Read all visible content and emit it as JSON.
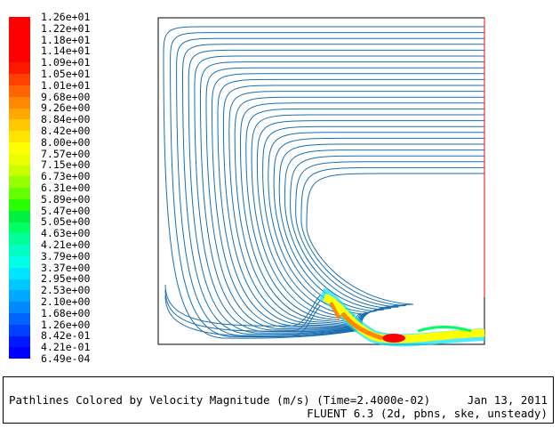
{
  "legend": {
    "colors": [
      "#0000ff",
      "#0018ff",
      "#0040ff",
      "#0064ff",
      "#0088ff",
      "#00a8ff",
      "#00c8ff",
      "#00e4ff",
      "#00ffe8",
      "#00ffc4",
      "#00ff98",
      "#00ff64",
      "#00f040",
      "#28ff00",
      "#64ff00",
      "#98ff00",
      "#c8ff00",
      "#ecff00",
      "#ffff00",
      "#ffe400",
      "#ffc800",
      "#ffa800",
      "#ff8800",
      "#ff6400",
      "#ff4000",
      "#ff1800",
      "#ff0000",
      "#ff0000",
      "#ff0000",
      "#ff0000"
    ],
    "ticks": [
      "1.26e+01",
      "1.22e+01",
      "1.18e+01",
      "1.14e+01",
      "1.09e+01",
      "1.05e+01",
      "1.01e+01",
      "9.68e+00",
      "9.26e+00",
      "8.84e+00",
      "8.42e+00",
      "8.00e+00",
      "7.57e+00",
      "7.15e+00",
      "6.73e+00",
      "6.31e+00",
      "5.89e+00",
      "5.47e+00",
      "5.05e+00",
      "4.63e+00",
      "4.21e+00",
      "3.79e+00",
      "3.37e+00",
      "2.95e+00",
      "2.53e+00",
      "2.10e+00",
      "1.68e+00",
      "1.26e+00",
      "8.42e-01",
      "4.21e-01",
      "6.49e-04"
    ]
  },
  "pathline_color": "#1a6fb0",
  "caption": {
    "title": "Pathlines Colored by Velocity Magnitude (m/s)  (Time=2.4000e-02)",
    "date": "Jan 13, 2011",
    "solver": "FLUENT 6.3 (2d, pbns, ske, unsteady)"
  }
}
